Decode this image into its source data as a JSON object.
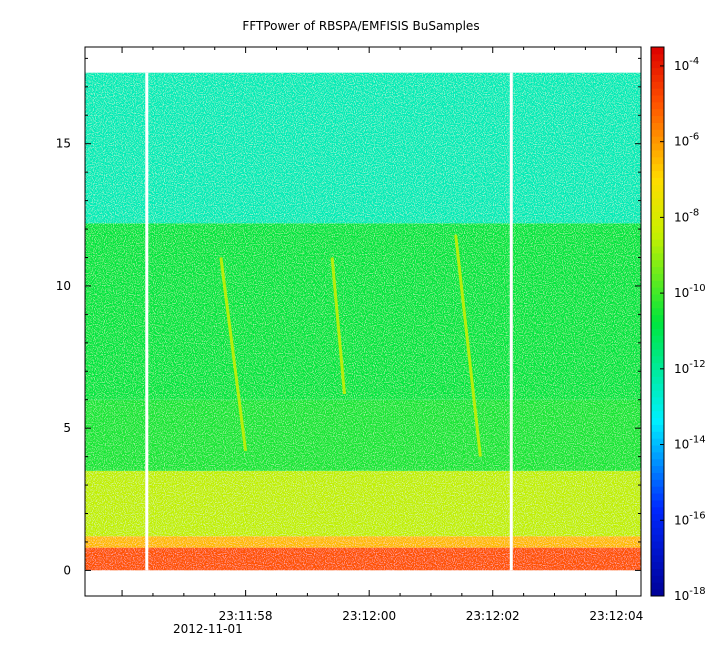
{
  "chart_data": {
    "type": "heatmap",
    "title": "FFTPower of RBSPA/EMFISIS  BuSamples",
    "xlabel": "",
    "ylabel": "",
    "x_tick_labels": [
      "23:11:58",
      "23:12:00",
      "23:12:02",
      "23:12:04"
    ],
    "x_tick_sublabel": "2012-11-01",
    "x_tick_values_s": [
      58,
      60,
      62,
      64
    ],
    "xlim_s": [
      55.4,
      64.4
    ],
    "y_ticks": [
      0,
      5,
      10,
      15
    ],
    "ylim": [
      -0.9,
      18.4
    ],
    "data_ymax": 17.5,
    "colorbar": {
      "scale": "log",
      "min_exp": -18,
      "max_exp": -3.5,
      "tick_exponents": [
        -18,
        -16,
        -14,
        -12,
        -10,
        -8,
        -6,
        -4
      ],
      "tick_base": "10"
    },
    "gaps_s": [
      56.4,
      62.3
    ],
    "bands": [
      {
        "y_from": 0.0,
        "y_to": 0.8,
        "log_power": -5.0
      },
      {
        "y_from": 0.8,
        "y_to": 1.2,
        "log_power": -6.5
      },
      {
        "y_from": 1.2,
        "y_to": 3.5,
        "log_power": -8.5
      },
      {
        "y_from": 3.5,
        "y_to": 6.0,
        "log_power": -10.5
      },
      {
        "y_from": 6.0,
        "y_to": 12.2,
        "log_power": -10.8
      },
      {
        "y_from": 12.2,
        "y_to": 17.5,
        "log_power": -12.4
      }
    ],
    "chorus_elements": [
      {
        "t_top": 57.6,
        "y_top": 11.0,
        "t_bottom": 58.0,
        "y_bottom": 4.2
      },
      {
        "t_top": 59.4,
        "y_top": 11.0,
        "t_bottom": 59.6,
        "y_bottom": 6.2
      },
      {
        "t_top": 61.4,
        "y_top": 11.8,
        "t_bottom": 61.8,
        "y_bottom": 4.0
      }
    ]
  }
}
